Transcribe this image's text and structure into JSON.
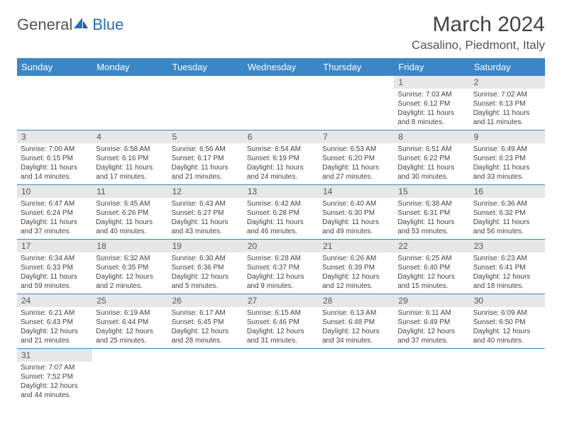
{
  "logo": {
    "text1": "General",
    "text2": "Blue"
  },
  "title": "March 2024",
  "location": "Casalino, Piedmont, Italy",
  "colors": {
    "header_bg": "#3a87c8",
    "header_fg": "#ffffff",
    "daynum_bg": "#e7e7e7",
    "row_border": "#3a87c8",
    "text": "#444444"
  },
  "dow": [
    "Sunday",
    "Monday",
    "Tuesday",
    "Wednesday",
    "Thursday",
    "Friday",
    "Saturday"
  ],
  "weeks": [
    [
      {
        "empty": true
      },
      {
        "empty": true
      },
      {
        "empty": true
      },
      {
        "empty": true
      },
      {
        "empty": true
      },
      {
        "n": "1",
        "sunrise": "7:03 AM",
        "sunset": "6:12 PM",
        "daylight": "11 hours and 8 minutes."
      },
      {
        "n": "2",
        "sunrise": "7:02 AM",
        "sunset": "6:13 PM",
        "daylight": "11 hours and 11 minutes."
      }
    ],
    [
      {
        "n": "3",
        "sunrise": "7:00 AM",
        "sunset": "6:15 PM",
        "daylight": "11 hours and 14 minutes."
      },
      {
        "n": "4",
        "sunrise": "6:58 AM",
        "sunset": "6:16 PM",
        "daylight": "11 hours and 17 minutes."
      },
      {
        "n": "5",
        "sunrise": "6:56 AM",
        "sunset": "6:17 PM",
        "daylight": "11 hours and 21 minutes."
      },
      {
        "n": "6",
        "sunrise": "6:54 AM",
        "sunset": "6:19 PM",
        "daylight": "11 hours and 24 minutes."
      },
      {
        "n": "7",
        "sunrise": "6:53 AM",
        "sunset": "6:20 PM",
        "daylight": "11 hours and 27 minutes."
      },
      {
        "n": "8",
        "sunrise": "6:51 AM",
        "sunset": "6:22 PM",
        "daylight": "11 hours and 30 minutes."
      },
      {
        "n": "9",
        "sunrise": "6:49 AM",
        "sunset": "6:23 PM",
        "daylight": "11 hours and 33 minutes."
      }
    ],
    [
      {
        "n": "10",
        "sunrise": "6:47 AM",
        "sunset": "6:24 PM",
        "daylight": "11 hours and 37 minutes."
      },
      {
        "n": "11",
        "sunrise": "6:45 AM",
        "sunset": "6:26 PM",
        "daylight": "11 hours and 40 minutes."
      },
      {
        "n": "12",
        "sunrise": "6:43 AM",
        "sunset": "6:27 PM",
        "daylight": "11 hours and 43 minutes."
      },
      {
        "n": "13",
        "sunrise": "6:42 AM",
        "sunset": "6:28 PM",
        "daylight": "11 hours and 46 minutes."
      },
      {
        "n": "14",
        "sunrise": "6:40 AM",
        "sunset": "6:30 PM",
        "daylight": "11 hours and 49 minutes."
      },
      {
        "n": "15",
        "sunrise": "6:38 AM",
        "sunset": "6:31 PM",
        "daylight": "11 hours and 53 minutes."
      },
      {
        "n": "16",
        "sunrise": "6:36 AM",
        "sunset": "6:32 PM",
        "daylight": "11 hours and 56 minutes."
      }
    ],
    [
      {
        "n": "17",
        "sunrise": "6:34 AM",
        "sunset": "6:33 PM",
        "daylight": "11 hours and 59 minutes."
      },
      {
        "n": "18",
        "sunrise": "6:32 AM",
        "sunset": "6:35 PM",
        "daylight": "12 hours and 2 minutes."
      },
      {
        "n": "19",
        "sunrise": "6:30 AM",
        "sunset": "6:36 PM",
        "daylight": "12 hours and 5 minutes."
      },
      {
        "n": "20",
        "sunrise": "6:28 AM",
        "sunset": "6:37 PM",
        "daylight": "12 hours and 9 minutes."
      },
      {
        "n": "21",
        "sunrise": "6:26 AM",
        "sunset": "6:39 PM",
        "daylight": "12 hours and 12 minutes."
      },
      {
        "n": "22",
        "sunrise": "6:25 AM",
        "sunset": "6:40 PM",
        "daylight": "12 hours and 15 minutes."
      },
      {
        "n": "23",
        "sunrise": "6:23 AM",
        "sunset": "6:41 PM",
        "daylight": "12 hours and 18 minutes."
      }
    ],
    [
      {
        "n": "24",
        "sunrise": "6:21 AM",
        "sunset": "6:43 PM",
        "daylight": "12 hours and 21 minutes."
      },
      {
        "n": "25",
        "sunrise": "6:19 AM",
        "sunset": "6:44 PM",
        "daylight": "12 hours and 25 minutes."
      },
      {
        "n": "26",
        "sunrise": "6:17 AM",
        "sunset": "6:45 PM",
        "daylight": "12 hours and 28 minutes."
      },
      {
        "n": "27",
        "sunrise": "6:15 AM",
        "sunset": "6:46 PM",
        "daylight": "12 hours and 31 minutes."
      },
      {
        "n": "28",
        "sunrise": "6:13 AM",
        "sunset": "6:48 PM",
        "daylight": "12 hours and 34 minutes."
      },
      {
        "n": "29",
        "sunrise": "6:11 AM",
        "sunset": "6:49 PM",
        "daylight": "12 hours and 37 minutes."
      },
      {
        "n": "30",
        "sunrise": "6:09 AM",
        "sunset": "6:50 PM",
        "daylight": "12 hours and 40 minutes."
      }
    ],
    [
      {
        "n": "31",
        "sunrise": "7:07 AM",
        "sunset": "7:52 PM",
        "daylight": "12 hours and 44 minutes."
      },
      {
        "empty": true
      },
      {
        "empty": true
      },
      {
        "empty": true
      },
      {
        "empty": true
      },
      {
        "empty": true
      },
      {
        "empty": true
      }
    ]
  ],
  "labels": {
    "sunrise": "Sunrise:",
    "sunset": "Sunset:",
    "daylight": "Daylight:"
  }
}
